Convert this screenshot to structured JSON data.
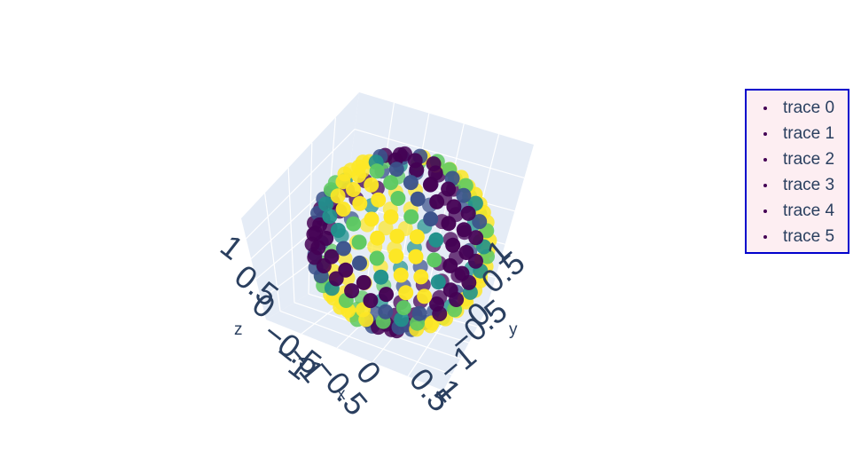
{
  "chart_data": {
    "type": "scatter3d",
    "description_shape": "sphere of markers",
    "colorscale": [
      "#440154",
      "#3b528b",
      "#21918c",
      "#5ec962",
      "#fde725"
    ],
    "bg_color": "#e5ecf6",
    "grid_color": "#ffffff",
    "axes": {
      "x": {
        "title": "x",
        "tick_labels": [
          "1",
          "0.5",
          "0",
          "−0.5",
          "−1"
        ]
      },
      "y": {
        "title": "y",
        "tick_labels": [
          "1",
          "0.5",
          "0",
          "−0.5",
          "−1"
        ]
      },
      "z": {
        "title": "z",
        "tick_labels": [
          "1",
          "0.5",
          "0",
          "−0.5",
          "−1"
        ]
      }
    },
    "x_range": [
      -1,
      1
    ],
    "y_range": [
      -1,
      1
    ],
    "z_range": [
      -1,
      1
    ],
    "series": [
      {
        "name": "trace 0"
      },
      {
        "name": "trace 1"
      },
      {
        "name": "trace 2"
      },
      {
        "name": "trace 3"
      },
      {
        "name": "trace 4"
      },
      {
        "name": "trace 5"
      }
    ],
    "legend_position": "top-right",
    "legend_border_color": "#0000cc",
    "legend_bg_color": "#fdeef2"
  }
}
